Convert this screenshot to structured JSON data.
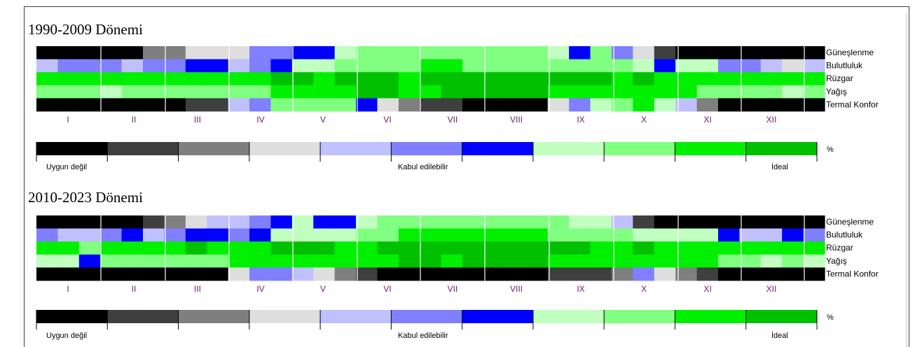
{
  "chart_data": [
    {
      "type": "heatmap",
      "title": "1990-2009 Dönemi",
      "rows": [
        "Güneşlenme",
        "Bulutluluk",
        "Rüzgar",
        "Yağış",
        "Termal Konfor"
      ],
      "months": [
        "I",
        "II",
        "III",
        "IV",
        "V",
        "VI",
        "VII",
        "VIII",
        "IX",
        "X",
        "XI",
        "XII"
      ],
      "periods_per_month": 3,
      "cells": [
        [
          1,
          1,
          1,
          1,
          1,
          3,
          3,
          4,
          4,
          4,
          6,
          6,
          7,
          7,
          8,
          9,
          9,
          9,
          9,
          9,
          9,
          9,
          9,
          9,
          8,
          7,
          9,
          6,
          4,
          2,
          1,
          1,
          1,
          1,
          1,
          1
        ],
        [
          5,
          6,
          6,
          6,
          5,
          6,
          6,
          7,
          7,
          5,
          6,
          7,
          8,
          8,
          9,
          9,
          9,
          9,
          10,
          10,
          9,
          9,
          9,
          9,
          9,
          9,
          9,
          9,
          8,
          7,
          8,
          8,
          6,
          6,
          5,
          4
        ],
        [
          10,
          10,
          10,
          10,
          10,
          10,
          10,
          10,
          10,
          10,
          10,
          11,
          11,
          10,
          11,
          11,
          11,
          10,
          11,
          11,
          11,
          11,
          11,
          11,
          11,
          11,
          11,
          10,
          11,
          10,
          10,
          10,
          10,
          10,
          10,
          10
        ],
        [
          9,
          9,
          9,
          8,
          9,
          9,
          9,
          9,
          9,
          9,
          9,
          10,
          10,
          10,
          10,
          11,
          11,
          10,
          10,
          11,
          11,
          11,
          11,
          11,
          10,
          10,
          10,
          10,
          10,
          10,
          10,
          9,
          9,
          9,
          9,
          8
        ],
        [
          1,
          1,
          1,
          1,
          1,
          1,
          1,
          2,
          2,
          5,
          6,
          9,
          9,
          9,
          9,
          7,
          4,
          3,
          2,
          2,
          1,
          1,
          1,
          1,
          4,
          6,
          8,
          9,
          10,
          8,
          5,
          3,
          1,
          1,
          1,
          1
        ]
      ],
      "row_labels_extra": [],
      "legend": {
        "levels": 11,
        "left_label": "Uygun değil",
        "middle_label": "Kabul edilebilir",
        "right_label": "İdeal",
        "unit": "%"
      }
    },
    {
      "type": "heatmap",
      "title": "2010-2023 Dönemi",
      "rows": [
        "Güneşlenme",
        "Bulutluluk",
        "Rüzgar",
        "Yağış",
        "Termal Konfor"
      ],
      "months": [
        "I",
        "II",
        "III",
        "IV",
        "V",
        "VI",
        "VII",
        "VIII",
        "IX",
        "X",
        "XI",
        "XII"
      ],
      "periods_per_month": 3,
      "cells": [
        [
          1,
          1,
          1,
          1,
          1,
          2,
          3,
          4,
          5,
          5,
          6,
          7,
          8,
          7,
          7,
          8,
          9,
          9,
          9,
          9,
          9,
          9,
          9,
          9,
          9,
          8,
          8,
          5,
          2,
          1,
          1,
          1,
          1,
          1,
          1,
          1
        ],
        [
          6,
          5,
          5,
          6,
          7,
          5,
          6,
          7,
          7,
          6,
          7,
          8,
          8,
          8,
          8,
          9,
          9,
          10,
          10,
          10,
          10,
          10,
          10,
          10,
          9,
          9,
          9,
          9,
          8,
          8,
          8,
          8,
          7,
          5,
          5,
          7
        ],
        [
          10,
          10,
          9,
          10,
          10,
          10,
          10,
          11,
          10,
          10,
          10,
          11,
          11,
          11,
          10,
          10,
          11,
          11,
          11,
          11,
          11,
          11,
          11,
          11,
          11,
          11,
          10,
          10,
          11,
          10,
          10,
          10,
          10,
          10,
          10,
          10
        ],
        [
          8,
          8,
          7,
          9,
          9,
          9,
          9,
          9,
          9,
          10,
          10,
          10,
          10,
          10,
          10,
          10,
          10,
          11,
          11,
          10,
          11,
          11,
          11,
          11,
          10,
          10,
          10,
          10,
          10,
          10,
          10,
          10,
          9,
          9,
          8,
          9
        ],
        [
          1,
          1,
          1,
          1,
          1,
          1,
          1,
          1,
          1,
          4,
          6,
          6,
          5,
          4,
          3,
          2,
          1,
          1,
          1,
          1,
          1,
          1,
          1,
          1,
          2,
          2,
          2,
          3,
          6,
          4,
          3,
          2,
          1,
          1,
          1,
          1
        ]
      ],
      "legend": {
        "levels": 11,
        "left_label": "Uygun değil",
        "middle_label": "Kabul edilebilir",
        "right_label": "İdeal",
        "unit": "%"
      }
    }
  ],
  "palette": [
    "#000000",
    "#3f3f3f",
    "#7f7f7f",
    "#dedede",
    "#c0c0ff",
    "#7f7fff",
    "#0000ff",
    "#c0ffc0",
    "#80ff80",
    "#00f000",
    "#00c000"
  ]
}
